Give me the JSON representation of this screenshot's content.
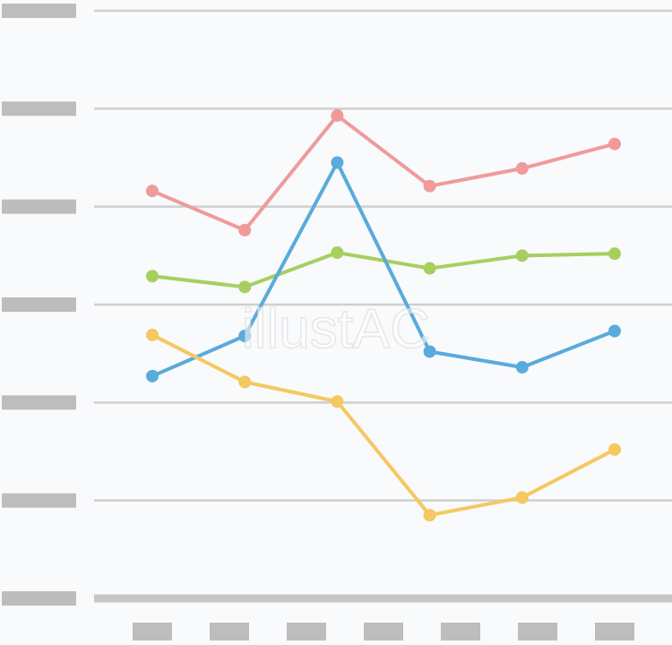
{
  "chart_data": {
    "type": "line",
    "watermark": "illustAC",
    "categories": [
      null,
      null,
      null,
      null,
      null,
      null
    ],
    "series": [
      {
        "color": "#f09a9b",
        "values": [
          4.16,
          3.76,
          4.93,
          4.21,
          4.39,
          4.64
        ]
      },
      {
        "color": "#a7cf5f",
        "values": [
          3.29,
          3.18,
          3.53,
          3.37,
          3.5,
          3.52
        ]
      },
      {
        "color": "#5aaadc",
        "values": [
          2.27,
          2.68,
          4.45,
          2.52,
          2.36,
          2.73
        ]
      },
      {
        "color": "#f5c860",
        "values": [
          2.69,
          2.21,
          2.01,
          0.85,
          1.03,
          1.52
        ]
      }
    ],
    "ylim": [
      0,
      6
    ],
    "yticks": [
      0,
      1,
      2,
      3,
      4,
      5,
      6
    ],
    "grid": true
  }
}
